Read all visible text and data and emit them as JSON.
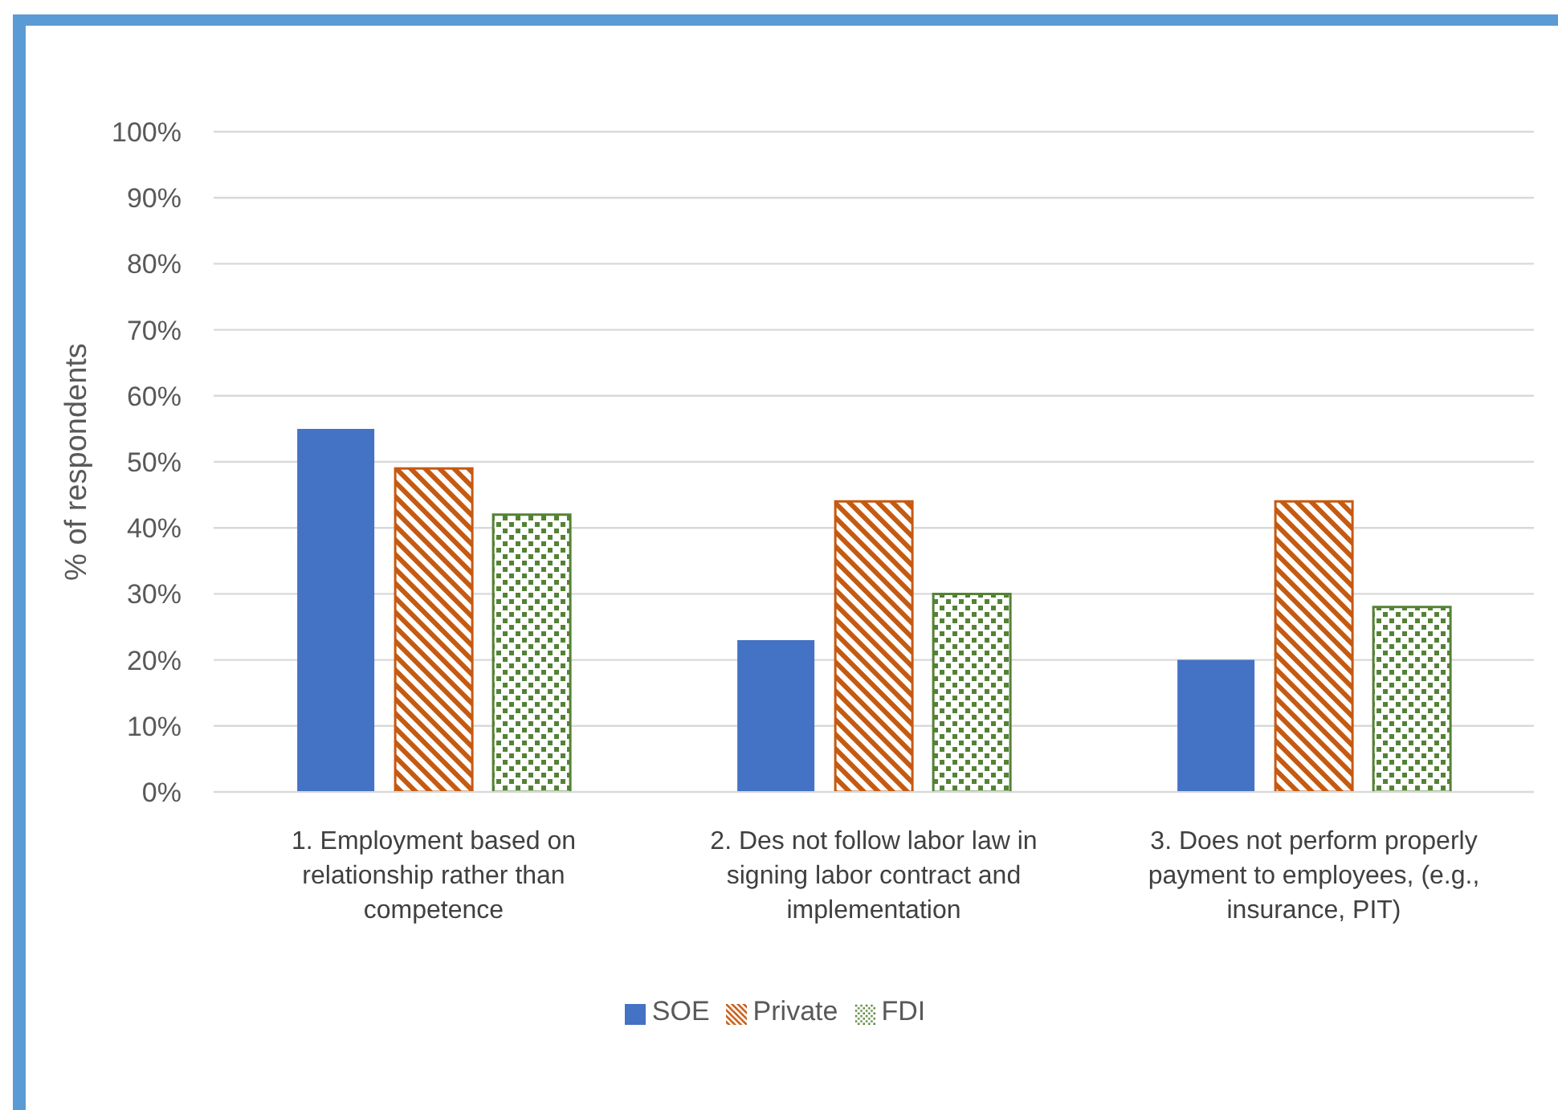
{
  "chart_data": {
    "type": "bar",
    "ylabel": "% of respondents",
    "categories": [
      "1. Employment based on relationship rather than competence",
      "2. Des not follow labor law in signing labor contract and implementation",
      "3. Does not perform properly payment to employees, (e.g., insurance, PIT)"
    ],
    "series": [
      {
        "name": "SOE",
        "color": "#4472c4",
        "values": [
          55,
          23,
          20
        ]
      },
      {
        "name": "Private",
        "color": "#c55a11",
        "values": [
          49,
          44,
          44
        ]
      },
      {
        "name": "FDI",
        "color": "#548235",
        "values": [
          42,
          30,
          28
        ]
      }
    ],
    "ylim": [
      0,
      100
    ],
    "yticks": [
      {
        "value": 0,
        "label": "0%"
      },
      {
        "value": 10,
        "label": "10%"
      },
      {
        "value": 20,
        "label": "20%"
      },
      {
        "value": 30,
        "label": "30%"
      },
      {
        "value": 40,
        "label": "40%"
      },
      {
        "value": 50,
        "label": "50%"
      },
      {
        "value": 60,
        "label": "60%"
      },
      {
        "value": 70,
        "label": "70%"
      },
      {
        "value": 80,
        "label": "80%"
      },
      {
        "value": 90,
        "label": "90%"
      },
      {
        "value": 100,
        "label": "100%"
      }
    ],
    "grid": "y",
    "legend": "bottom"
  }
}
